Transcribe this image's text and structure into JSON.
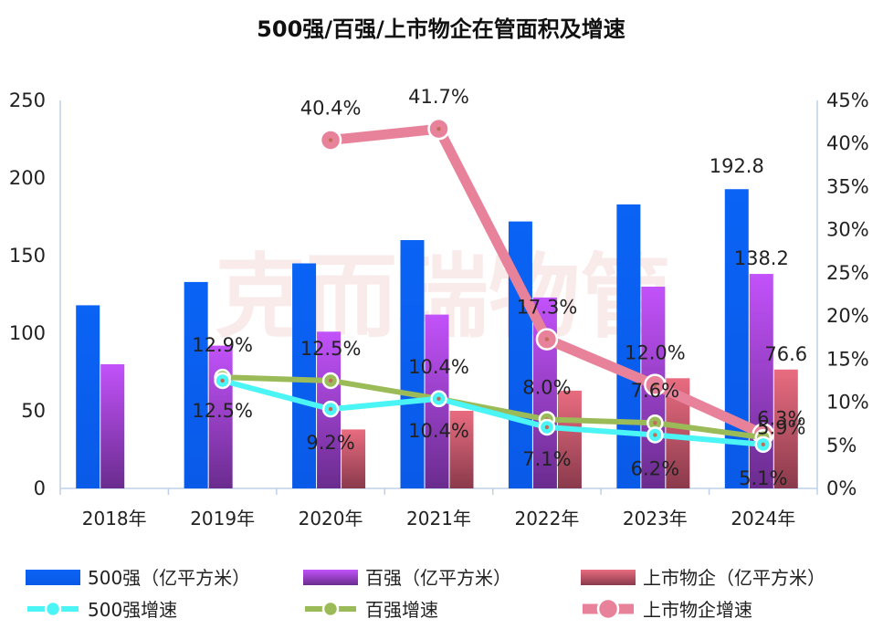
{
  "chart_data": {
    "type": "bar",
    "title": "500强/百强/上市物企在管面积及增速",
    "watermark": "克而瑞物管",
    "categories": [
      "2018年",
      "2019年",
      "2020年",
      "2021年",
      "2022年",
      "2023年",
      "2024年"
    ],
    "y_left": {
      "ylim": [
        0,
        250
      ],
      "ticks": [
        "0",
        "50",
        "100",
        "150",
        "200",
        "250"
      ]
    },
    "y_right": {
      "ylim": [
        0,
        45
      ],
      "ticks": [
        "0%",
        "5%",
        "10%",
        "15%",
        "20%",
        "25%",
        "30%",
        "35%",
        "40%",
        "45%"
      ]
    },
    "bar_series": [
      {
        "name": "500强（亿平方米）",
        "values": [
          118,
          133,
          145,
          160,
          172,
          183,
          192.8
        ],
        "color": "#0a63f5"
      },
      {
        "name": "百强（亿平方米）",
        "values": [
          80,
          92,
          101,
          112,
          123,
          130,
          138.2
        ],
        "color": "#b84cf0"
      },
      {
        "name": "上市物企（亿平方米）",
        "values": [
          null,
          null,
          38,
          50,
          63,
          71,
          76.6
        ],
        "color": "#e5677a"
      }
    ],
    "bar_labels": [
      {
        "series": 0,
        "index": 6,
        "text": "192.8"
      },
      {
        "series": 1,
        "index": 6,
        "text": "138.2"
      },
      {
        "series": 2,
        "index": 6,
        "text": "76.6"
      }
    ],
    "line_series": [
      {
        "name": "500强增速",
        "values": [
          null,
          12.5,
          9.2,
          10.4,
          7.1,
          6.2,
          5.1
        ],
        "labels": [
          null,
          "12.5%",
          "9.2%",
          "10.4%",
          "7.1%",
          "6.2%",
          "5.1%"
        ],
        "color": "#4bf5f5"
      },
      {
        "name": "百强增速",
        "values": [
          null,
          12.9,
          12.5,
          10.4,
          8.0,
          7.6,
          5.9
        ],
        "labels": [
          null,
          "12.9%",
          "12.5%",
          "10.4%",
          "8.0%",
          "7.6%",
          "5.9%"
        ],
        "color": "#9bbb59"
      },
      {
        "name": "上市物企增速",
        "values": [
          null,
          null,
          40.4,
          41.7,
          17.3,
          12.0,
          6.3
        ],
        "labels": [
          null,
          null,
          "40.4%",
          "41.7%",
          "17.3%",
          "12.0%",
          "6.3%"
        ],
        "color": "#e8829a"
      }
    ],
    "legend_position": "bottom",
    "grid": false
  }
}
